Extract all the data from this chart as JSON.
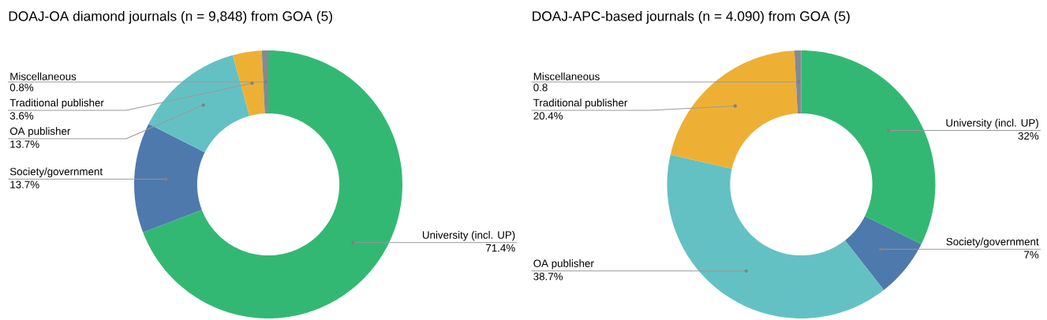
{
  "chart_data": [
    {
      "type": "donut",
      "title": "DOAJ-OA diamond journals (n = 9,848) from GOA (5)",
      "categories": [
        "University (incl. UP)",
        "Society/government",
        "OA publisher",
        "Traditional publisher",
        "Miscellaneous"
      ],
      "values": [
        71.4,
        13.7,
        13.7,
        3.6,
        0.8
      ],
      "colors": [
        "#33b874",
        "#4e79ad",
        "#63c1c4",
        "#edb035",
        "#858a8e"
      ],
      "value_labels": [
        "71.4%",
        "13.7%",
        "13.7%",
        "3.6%",
        "0.8%"
      ]
    },
    {
      "type": "donut",
      "title": "DOAJ-APC-based journals (n = 4.090) from GOA (5)",
      "categories": [
        "University (incl. UP)",
        "Society/government",
        "OA publisher",
        "Traditional publisher",
        "Miscellaneous"
      ],
      "values": [
        32,
        7,
        38.7,
        20.4,
        0.8
      ],
      "colors": [
        "#33b874",
        "#4e79ad",
        "#63c1c4",
        "#edb035",
        "#858a8e"
      ],
      "value_labels": [
        "32%",
        "7%",
        "38.7%",
        "20.4%",
        "0.8"
      ]
    }
  ]
}
